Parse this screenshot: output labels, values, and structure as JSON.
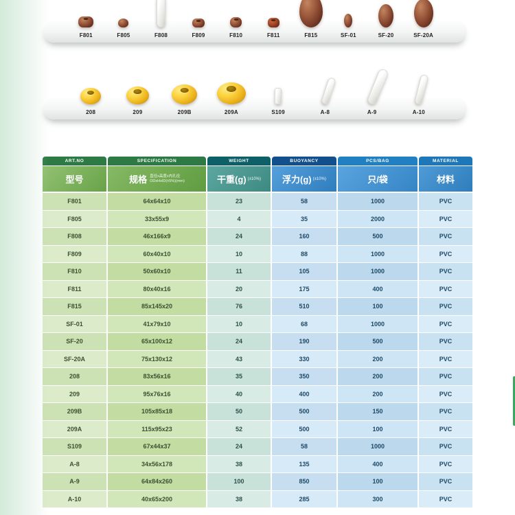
{
  "colors": {
    "header_green_dark": "#2d7a45",
    "header_green": "#74ad56",
    "header_teal_dark": "#0d5f68",
    "header_teal": "#4a998f",
    "header_navy": "#11508c",
    "header_blue": "#3f8ccb",
    "accent_green_edge": "#35aa5a",
    "float_brown": "#8a4a30",
    "float_yellow": "#f2c030",
    "float_white": "#f2f2ef"
  },
  "shelf1": {
    "items": [
      {
        "label": "F801",
        "type": "p-f801"
      },
      {
        "label": "F805",
        "type": "p-f805"
      },
      {
        "label": "F808",
        "type": "p-f808"
      },
      {
        "label": "F809",
        "type": "p-f809"
      },
      {
        "label": "F810",
        "type": "p-f810"
      },
      {
        "label": "F811",
        "type": "p-f811"
      },
      {
        "label": "F815",
        "type": "p-f815"
      },
      {
        "label": "SF-01",
        "type": "p-sf01"
      },
      {
        "label": "SF-20",
        "type": "p-sf20"
      },
      {
        "label": "SF-20A",
        "type": "p-sf20a"
      }
    ]
  },
  "shelf2": {
    "items": [
      {
        "label": "208",
        "type": "p-208"
      },
      {
        "label": "209",
        "type": "p-209"
      },
      {
        "label": "209B",
        "type": "p-209b"
      },
      {
        "label": "209A",
        "type": "p-209a"
      },
      {
        "label": "S109",
        "type": "p-s109"
      },
      {
        "label": "A-8",
        "type": "p-a8"
      },
      {
        "label": "A-9",
        "type": "p-a9"
      },
      {
        "label": "A-10",
        "type": "p-a10"
      }
    ]
  },
  "table": {
    "columns": [
      {
        "en": "ART.NO",
        "zh": "型号"
      },
      {
        "en": "SPECIFICATION",
        "zh": "规格",
        "note1": "直径x高度x内孔径",
        "note2": "ODxHxID(±5%)(mm)"
      },
      {
        "en": "WEIGHT",
        "zh": "干重(g)",
        "note": "(±10%)"
      },
      {
        "en": "BUOYANCY",
        "zh": "浮力(g)",
        "note": "(±10%)"
      },
      {
        "en": "PCS/BAG",
        "zh": "只/袋"
      },
      {
        "en": "MATERIAL",
        "zh": "材料"
      }
    ],
    "rows": [
      {
        "art": "F801",
        "spec": "64x64x10",
        "weight": "23",
        "buoyancy": "58",
        "pcs": "1000",
        "material": "PVC"
      },
      {
        "art": "F805",
        "spec": "33x55x9",
        "weight": "4",
        "buoyancy": "35",
        "pcs": "2000",
        "material": "PVC"
      },
      {
        "art": "F808",
        "spec": "46x166x9",
        "weight": "24",
        "buoyancy": "160",
        "pcs": "500",
        "material": "PVC"
      },
      {
        "art": "F809",
        "spec": "60x40x10",
        "weight": "10",
        "buoyancy": "88",
        "pcs": "1000",
        "material": "PVC"
      },
      {
        "art": "F810",
        "spec": "50x60x10",
        "weight": "11",
        "buoyancy": "105",
        "pcs": "1000",
        "material": "PVC"
      },
      {
        "art": "F811",
        "spec": "80x40x16",
        "weight": "20",
        "buoyancy": "175",
        "pcs": "400",
        "material": "PVC"
      },
      {
        "art": "F815",
        "spec": "85x145x20",
        "weight": "76",
        "buoyancy": "510",
        "pcs": "100",
        "material": "PVC"
      },
      {
        "art": "SF-01",
        "spec": "41x79x10",
        "weight": "10",
        "buoyancy": "68",
        "pcs": "1000",
        "material": "PVC"
      },
      {
        "art": "SF-20",
        "spec": "65x100x12",
        "weight": "24",
        "buoyancy": "190",
        "pcs": "500",
        "material": "PVC"
      },
      {
        "art": "SF-20A",
        "spec": "75x130x12",
        "weight": "43",
        "buoyancy": "330",
        "pcs": "200",
        "material": "PVC"
      },
      {
        "art": "208",
        "spec": "83x56x16",
        "weight": "35",
        "buoyancy": "350",
        "pcs": "200",
        "material": "PVC"
      },
      {
        "art": "209",
        "spec": "95x76x16",
        "weight": "40",
        "buoyancy": "400",
        "pcs": "200",
        "material": "PVC"
      },
      {
        "art": "209B",
        "spec": "105x85x18",
        "weight": "50",
        "buoyancy": "500",
        "pcs": "150",
        "material": "PVC"
      },
      {
        "art": "209A",
        "spec": "115x95x23",
        "weight": "52",
        "buoyancy": "500",
        "pcs": "100",
        "material": "PVC"
      },
      {
        "art": "S109",
        "spec": "67x44x37",
        "weight": "24",
        "buoyancy": "58",
        "pcs": "1000",
        "material": "PVC"
      },
      {
        "art": "A-8",
        "spec": "34x56x178",
        "weight": "38",
        "buoyancy": "135",
        "pcs": "400",
        "material": "PVC"
      },
      {
        "art": "A-9",
        "spec": "64x84x260",
        "weight": "100",
        "buoyancy": "850",
        "pcs": "100",
        "material": "PVC"
      },
      {
        "art": "A-10",
        "spec": "40x65x200",
        "weight": "38",
        "buoyancy": "285",
        "pcs": "300",
        "material": "PVC"
      }
    ]
  }
}
